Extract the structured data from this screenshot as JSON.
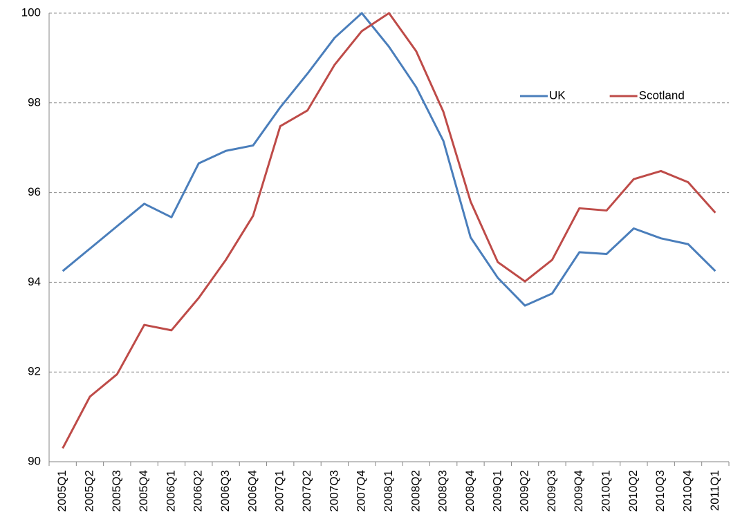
{
  "chart_data": {
    "type": "line",
    "categories": [
      "2005Q1",
      "2005Q2",
      "2005Q3",
      "2005Q4",
      "2006Q1",
      "2006Q2",
      "2006Q3",
      "2006Q4",
      "2007Q1",
      "2007Q2",
      "2007Q3",
      "2007Q4",
      "2008Q1",
      "2008Q2",
      "2008Q3",
      "2008Q4",
      "2009Q1",
      "2009Q2",
      "2009Q3",
      "2009Q4",
      "2010Q1",
      "2010Q2",
      "2010Q3",
      "2010Q4",
      "2011Q1"
    ],
    "series": [
      {
        "name": "UK",
        "color": "#4a7ebb",
        "values": [
          94.25,
          94.75,
          95.25,
          95.75,
          95.45,
          96.65,
          96.93,
          97.05,
          97.9,
          98.65,
          99.45,
          100.0,
          99.25,
          98.35,
          97.15,
          95.0,
          94.1,
          93.48,
          93.75,
          94.67,
          94.63,
          95.2,
          94.98,
          94.85,
          94.25
        ]
      },
      {
        "name": "Scotland",
        "color": "#be4b48",
        "values": [
          90.3,
          91.45,
          91.95,
          93.05,
          92.93,
          93.65,
          94.5,
          95.48,
          97.48,
          97.83,
          98.85,
          99.6,
          100.0,
          99.15,
          97.8,
          95.8,
          94.45,
          94.02,
          94.5,
          95.65,
          95.6,
          96.3,
          96.48,
          96.23,
          95.55
        ]
      }
    ],
    "ylim": [
      90,
      100
    ],
    "yticks": [
      90,
      92,
      94,
      96,
      98,
      100
    ],
    "grid": true,
    "legend": "upper right"
  }
}
